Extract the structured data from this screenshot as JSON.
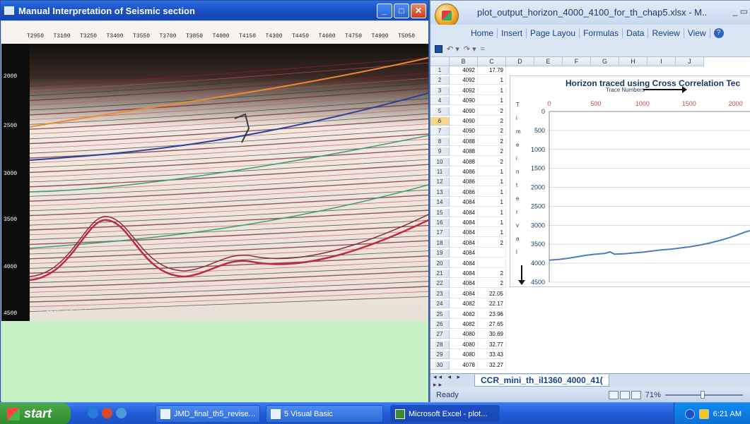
{
  "seismic_window": {
    "title": "Manual Interpretation of Seismic section",
    "trace_labels": [
      "T2950",
      "T3100",
      "T3250",
      "T3400",
      "T3550",
      "T3700",
      "T3850",
      "T4000",
      "T4150",
      "T4300",
      "T4450",
      "T4600",
      "T4750",
      "T4900",
      "T5050"
    ],
    "depth_labels": [
      "2000",
      "2500",
      "3000",
      "3500",
      "4000",
      "4500"
    ],
    "footer_left": "ond-palm-new.br1",
    "footer_center": "1-300Sm-4",
    "footer_scale": "65 tr/cm  3.0 IPS",
    "footer_right": "LINE",
    "footer_w": "W"
  },
  "excel": {
    "title": "plot_output_horizon_4000_4100_for_th_chap5.xlsx - M..",
    "tabs": [
      "Home",
      "Insert",
      "Page Layou",
      "Formulas",
      "Data",
      "Review",
      "View"
    ],
    "columns": [
      "B",
      "C",
      "D",
      "E",
      "F",
      "G",
      "H",
      "I",
      "J"
    ],
    "rows": [
      {
        "n": "1",
        "b": "4092",
        "c": "17.79"
      },
      {
        "n": "2",
        "b": "4092",
        "c": "1"
      },
      {
        "n": "3",
        "b": "4092",
        "c": "1"
      },
      {
        "n": "4",
        "b": "4090",
        "c": "1"
      },
      {
        "n": "5",
        "b": "4090",
        "c": "2"
      },
      {
        "n": "6",
        "b": "4090",
        "c": "2"
      },
      {
        "n": "7",
        "b": "4090",
        "c": "2"
      },
      {
        "n": "8",
        "b": "4088",
        "c": "2"
      },
      {
        "n": "9",
        "b": "4088",
        "c": "2"
      },
      {
        "n": "10",
        "b": "4088",
        "c": "2"
      },
      {
        "n": "11",
        "b": "4086",
        "c": "1"
      },
      {
        "n": "12",
        "b": "4086",
        "c": "1"
      },
      {
        "n": "13",
        "b": "4086",
        "c": "1"
      },
      {
        "n": "14",
        "b": "4084",
        "c": "1"
      },
      {
        "n": "15",
        "b": "4084",
        "c": "1"
      },
      {
        "n": "16",
        "b": "4084",
        "c": "1"
      },
      {
        "n": "17",
        "b": "4084",
        "c": "1"
      },
      {
        "n": "18",
        "b": "4084",
        "c": "2"
      },
      {
        "n": "19",
        "b": "4084",
        "c": ""
      },
      {
        "n": "20",
        "b": "4084",
        "c": ""
      },
      {
        "n": "21",
        "b": "4084",
        "c": "2"
      },
      {
        "n": "22",
        "b": "4084",
        "c": "2"
      },
      {
        "n": "23",
        "b": "4084",
        "c": "22.05"
      },
      {
        "n": "24",
        "b": "4082",
        "c": "22.17"
      },
      {
        "n": "25",
        "b": "4082",
        "c": "23.96"
      },
      {
        "n": "26",
        "b": "4082",
        "c": "27.65"
      },
      {
        "n": "27",
        "b": "4080",
        "c": "30.69"
      },
      {
        "n": "28",
        "b": "4080",
        "c": "32.77"
      },
      {
        "n": "29",
        "b": "4080",
        "c": "33.43"
      },
      {
        "n": "30",
        "b": "4078",
        "c": "32.27"
      }
    ],
    "sheet_tab": "CCR_mini_th_il1360_4000_41(",
    "status": "Ready",
    "zoom": "71%"
  },
  "chart_data": {
    "type": "line",
    "title": "Horizon traced using Cross Correlation Tec",
    "xlabel": "Trace Numbers",
    "ylabel": "Time interval",
    "x_ticks": [
      0,
      500,
      1000,
      1500,
      2000
    ],
    "y_ticks": [
      0,
      500,
      1000,
      1500,
      2000,
      2500,
      3000,
      3500,
      4000,
      4500
    ],
    "xlim": [
      0,
      2200
    ],
    "ylim": [
      0,
      4500
    ],
    "y_inverted": true,
    "series": [
      {
        "x": [
          0,
          100,
          200,
          300,
          400,
          500,
          600,
          650,
          700,
          800,
          900,
          1000,
          1100,
          1200,
          1300,
          1400,
          1500,
          1600,
          1700,
          1800,
          1900,
          2000,
          2100,
          2200
        ],
        "y": [
          3920,
          3900,
          3870,
          3830,
          3790,
          3760,
          3740,
          3700,
          3760,
          3750,
          3730,
          3710,
          3680,
          3650,
          3630,
          3600,
          3570,
          3530,
          3480,
          3420,
          3350,
          3270,
          3180,
          3110
        ]
      }
    ],
    "line_color": "#4a7ebb"
  },
  "taskbar": {
    "start": "start",
    "tasks": [
      "JMD_final_th5_revise...",
      "5 Visual Basic",
      "Microsoft Excel - plot..."
    ],
    "clock": "6:21 AM"
  }
}
